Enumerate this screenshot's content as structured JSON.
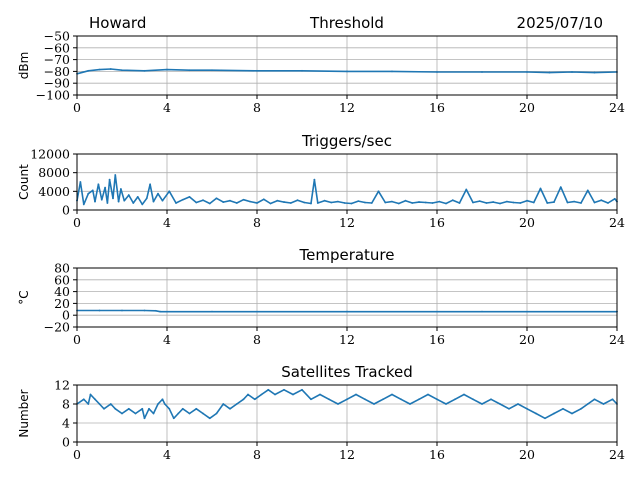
{
  "header": {
    "station": "Howard",
    "date": "2025/07/10"
  },
  "colors": {
    "series": "#1f77b4",
    "grid": "#b0b0b0"
  },
  "chart_data": [
    {
      "type": "line",
      "title": "Threshold",
      "ylabel": "dBm",
      "xlim": [
        0,
        24
      ],
      "ylim": [
        -100,
        -50
      ],
      "xticks": [
        0,
        4,
        8,
        12,
        16,
        20,
        24
      ],
      "yticks": [
        -100,
        -90,
        -80,
        -70,
        -60,
        -50
      ],
      "grid": true,
      "series": [
        {
          "x": [
            0,
            0.5,
            1,
            1.5,
            2,
            3,
            4,
            5,
            6,
            8,
            10,
            12,
            14,
            16,
            18,
            20,
            21,
            22,
            23,
            24
          ],
          "values": [
            -82,
            -79.5,
            -78.5,
            -78,
            -79,
            -79.5,
            -78.5,
            -79,
            -79,
            -79.5,
            -79.5,
            -80,
            -80,
            -80.5,
            -80.5,
            -80.5,
            -81,
            -80.5,
            -81,
            -80.5
          ]
        }
      ]
    },
    {
      "type": "line",
      "title": "Triggers/sec",
      "ylabel": "Count",
      "xlim": [
        0,
        24
      ],
      "ylim": [
        0,
        12000
      ],
      "xticks": [
        0,
        4,
        8,
        12,
        16,
        20,
        24
      ],
      "yticks": [
        0,
        4000,
        8000,
        12000
      ],
      "grid": true,
      "series": [
        {
          "x": [
            0,
            0.15,
            0.3,
            0.5,
            0.7,
            0.8,
            0.95,
            1.1,
            1.25,
            1.35,
            1.45,
            1.6,
            1.7,
            1.85,
            1.95,
            2.1,
            2.3,
            2.5,
            2.7,
            2.9,
            3.1,
            3.25,
            3.4,
            3.6,
            3.8,
            4.1,
            4.4,
            4.7,
            5.0,
            5.3,
            5.6,
            5.9,
            6.2,
            6.5,
            6.8,
            7.1,
            7.4,
            7.7,
            8.0,
            8.3,
            8.6,
            8.9,
            9.2,
            9.5,
            9.8,
            10.1,
            10.4,
            10.55,
            10.7,
            11.0,
            11.3,
            11.6,
            11.9,
            12.2,
            12.5,
            12.8,
            13.1,
            13.4,
            13.7,
            14.0,
            14.3,
            14.6,
            14.9,
            15.2,
            15.5,
            15.8,
            16.1,
            16.4,
            16.7,
            17.0,
            17.3,
            17.6,
            17.9,
            18.2,
            18.5,
            18.8,
            19.1,
            19.4,
            19.7,
            20.0,
            20.3,
            20.6,
            20.9,
            21.2,
            21.5,
            21.8,
            22.1,
            22.4,
            22.7,
            23.0,
            23.3,
            23.6,
            23.9,
            24.0
          ],
          "values": [
            2000,
            6000,
            1200,
            3500,
            4200,
            1800,
            5500,
            2200,
            4800,
            1500,
            6500,
            2500,
            7500,
            1800,
            4500,
            2000,
            3200,
            1500,
            2800,
            1200,
            2500,
            5500,
            1800,
            3500,
            2000,
            4000,
            1500,
            2200,
            2800,
            1600,
            2100,
            1400,
            2500,
            1700,
            2000,
            1500,
            2200,
            1800,
            1500,
            2300,
            1400,
            2000,
            1700,
            1500,
            2100,
            1600,
            1400,
            6500,
            1500,
            2000,
            1600,
            1800,
            1500,
            1400,
            1900,
            1600,
            1500,
            4000,
            1600,
            1800,
            1400,
            2000,
            1500,
            1700,
            1600,
            1500,
            1800,
            1400,
            2100,
            1500,
            4400,
            1600,
            1900,
            1500,
            1700,
            1400,
            1800,
            1600,
            1500,
            2000,
            1600,
            4600,
            1500,
            1700,
            4900,
            1600,
            1800,
            1500,
            4200,
            1600,
            2100,
            1500,
            2400,
            1800
          ]
        }
      ]
    },
    {
      "type": "line",
      "title": "Temperature",
      "ylabel": "°C",
      "xlim": [
        0,
        24
      ],
      "ylim": [
        -20,
        80
      ],
      "xticks": [
        0,
        4,
        8,
        12,
        16,
        20,
        24
      ],
      "yticks": [
        -20,
        0,
        20,
        40,
        60,
        80
      ],
      "grid": true,
      "series": [
        {
          "x": [
            0,
            1,
            2,
            3,
            3.5,
            3.7,
            6,
            12,
            18,
            24
          ],
          "values": [
            8,
            8,
            8,
            8,
            7.5,
            6,
            6,
            6,
            6,
            6
          ]
        }
      ]
    },
    {
      "type": "line",
      "title": "Satellites Tracked",
      "ylabel": "Number",
      "xlim": [
        0,
        24
      ],
      "ylim": [
        0,
        12
      ],
      "xticks": [
        0,
        4,
        8,
        12,
        16,
        20,
        24
      ],
      "yticks": [
        0,
        4,
        8,
        12
      ],
      "grid": true,
      "series": [
        {
          "x": [
            0,
            0.3,
            0.5,
            0.6,
            0.8,
            1.0,
            1.2,
            1.5,
            1.7,
            2.0,
            2.3,
            2.6,
            2.9,
            3.0,
            3.2,
            3.4,
            3.6,
            3.8,
            3.9,
            4.1,
            4.3,
            4.5,
            4.7,
            5.0,
            5.3,
            5.6,
            5.9,
            6.2,
            6.5,
            6.8,
            7.1,
            7.4,
            7.6,
            7.9,
            8.2,
            8.5,
            8.8,
            9.2,
            9.6,
            10.0,
            10.4,
            10.8,
            11.2,
            11.6,
            12.0,
            12.4,
            12.8,
            13.2,
            13.6,
            14.0,
            14.4,
            14.8,
            15.2,
            15.6,
            16.0,
            16.4,
            16.8,
            17.2,
            17.6,
            18.0,
            18.4,
            18.8,
            19.2,
            19.6,
            20.0,
            20.4,
            20.8,
            21.2,
            21.6,
            22.0,
            22.4,
            22.7,
            23.0,
            23.4,
            23.8,
            24.0
          ],
          "values": [
            8,
            9,
            8,
            10,
            9,
            8,
            7,
            8,
            7,
            6,
            7,
            6,
            7,
            5,
            7,
            6,
            8,
            9,
            8,
            7,
            5,
            6,
            7,
            6,
            7,
            6,
            5,
            6,
            8,
            7,
            8,
            9,
            10,
            9,
            10,
            11,
            10,
            11,
            10,
            11,
            9,
            10,
            9,
            8,
            9,
            10,
            9,
            8,
            9,
            10,
            9,
            8,
            9,
            10,
            9,
            8,
            9,
            10,
            9,
            8,
            9,
            8,
            7,
            8,
            7,
            6,
            5,
            6,
            7,
            6,
            7,
            8,
            9,
            8,
            9,
            8
          ]
        }
      ]
    }
  ]
}
